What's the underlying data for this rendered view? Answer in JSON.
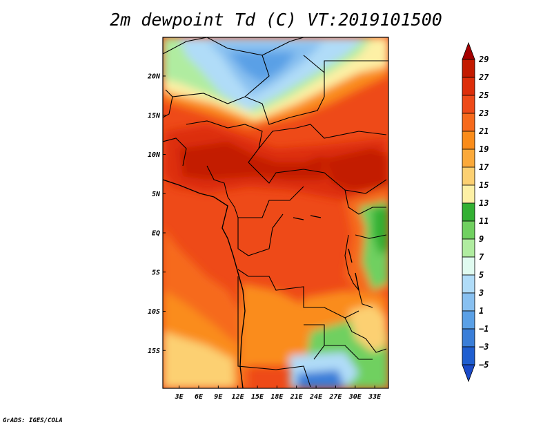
{
  "title": "2m dewpoint Td (C) VT:2019101500",
  "credit": "GrADS: IGES/COLA",
  "map": {
    "lat_labels": [
      "20N",
      "15N",
      "10N",
      "5N",
      "EQ",
      "5S",
      "10S",
      "15S"
    ],
    "lat_values": [
      20,
      15,
      10,
      5,
      0,
      -5,
      -10,
      -15
    ],
    "lon_labels": [
      "3E",
      "6E",
      "9E",
      "12E",
      "15E",
      "18E",
      "21E",
      "24E",
      "27E",
      "30E",
      "33E"
    ],
    "lon_values": [
      3,
      6,
      9,
      12,
      15,
      18,
      21,
      24,
      27,
      30,
      33
    ]
  },
  "colorbar": {
    "labels": [
      "29",
      "27",
      "25",
      "23",
      "21",
      "19",
      "17",
      "15",
      "13",
      "11",
      "9",
      "7",
      "5",
      "3",
      "1",
      "−1",
      "−3",
      "−5"
    ],
    "colors": [
      "#a50000",
      "#c31a00",
      "#dd2e0a",
      "#ee4a18",
      "#f66a1c",
      "#fa8c1a",
      "#fba93a",
      "#fcd072",
      "#fdf0a5",
      "#33b033",
      "#70d060",
      "#b0eca0",
      "#e0fbf0",
      "#b0dcf8",
      "#88c0f0",
      "#5aa0e6",
      "#3a7ed8",
      "#1f5ed0",
      "#1a4ac8"
    ]
  }
}
